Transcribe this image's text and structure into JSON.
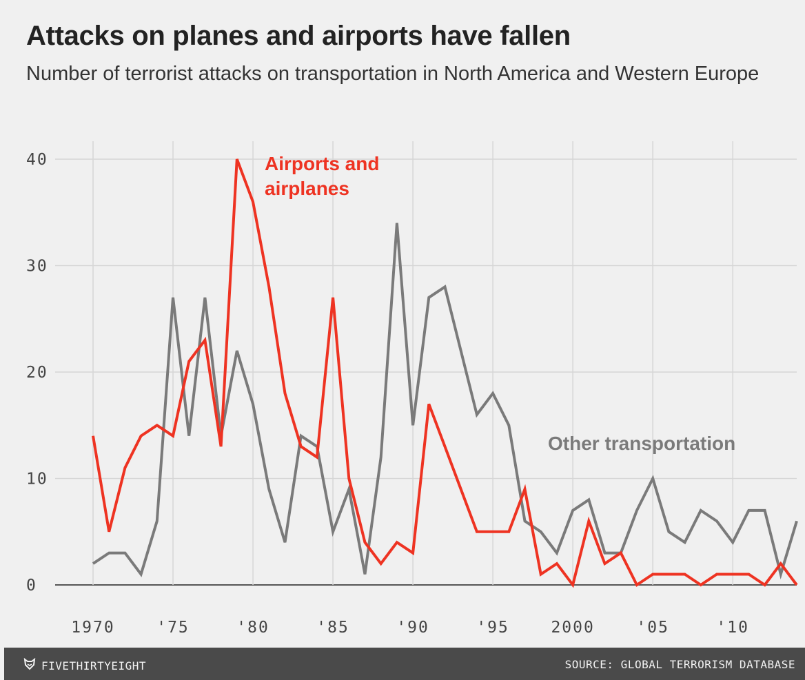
{
  "header": {
    "title": "Attacks on planes and airports have fallen",
    "subtitle": "Number of terrorist attacks on transportation in North America and Western Europe"
  },
  "footer": {
    "brand": "FIVETHIRTYEIGHT",
    "brand_icon": "fivethirtyeight-fox-icon",
    "source": "SOURCE: GLOBAL TERRORISM DATABASE"
  },
  "chart_data": {
    "type": "line",
    "title": "Attacks on planes and airports have fallen",
    "subtitle": "Number of terrorist attacks on transportation in North America and Western Europe",
    "xlabel": "",
    "ylabel": "",
    "xlim": [
      1970,
      2014
    ],
    "ylim": [
      0,
      40
    ],
    "grid": true,
    "x": [
      1970,
      1971,
      1972,
      1973,
      1974,
      1975,
      1976,
      1977,
      1978,
      1979,
      1980,
      1981,
      1982,
      1983,
      1984,
      1985,
      1986,
      1987,
      1988,
      1989,
      1990,
      1991,
      1992,
      1993,
      1994,
      1995,
      1996,
      1997,
      1998,
      1999,
      2000,
      2001,
      2002,
      2003,
      2004,
      2005,
      2006,
      2007,
      2008,
      2009,
      2010,
      2011,
      2012,
      2013,
      2014
    ],
    "xtick_values": [
      1970,
      1975,
      1980,
      1985,
      1990,
      1995,
      2000,
      2005,
      2010
    ],
    "xtick_labels": [
      "1970",
      "'75",
      "'80",
      "'85",
      "'90",
      "'95",
      "2000",
      "'05",
      "'10"
    ],
    "ytick_values": [
      0,
      10,
      20,
      30,
      40
    ],
    "ytick_labels": [
      "0",
      "10",
      "20",
      "30",
      "40"
    ],
    "series": [
      {
        "name": "Other transportation",
        "color": "#7a7a7a",
        "values": [
          2,
          3,
          3,
          1,
          6,
          27,
          14,
          27,
          14,
          22,
          17,
          9,
          4,
          14,
          13,
          5,
          9,
          1,
          12,
          34,
          15,
          27,
          28,
          22,
          16,
          18,
          15,
          6,
          5,
          3,
          7,
          8,
          3,
          3,
          7,
          10,
          5,
          4,
          7,
          6,
          4,
          7,
          7,
          1,
          6
        ]
      },
      {
        "name": "Airports and airplanes",
        "color": "#ee3322",
        "values": [
          14,
          5,
          11,
          14,
          15,
          14,
          21,
          23,
          13,
          40,
          36,
          28,
          18,
          13,
          12,
          27,
          10,
          4,
          2,
          4,
          3,
          17,
          13,
          9,
          5,
          5,
          5,
          9,
          1,
          2,
          0,
          6,
          2,
          3,
          0,
          1,
          1,
          1,
          0,
          1,
          1,
          1,
          0,
          2,
          0
        ]
      }
    ],
    "annotations": [
      {
        "series": "Airports and airplanes",
        "lines": [
          "Airports and",
          "airplanes"
        ]
      },
      {
        "series": "Other transportation",
        "lines": [
          "Other transportation"
        ]
      }
    ]
  }
}
